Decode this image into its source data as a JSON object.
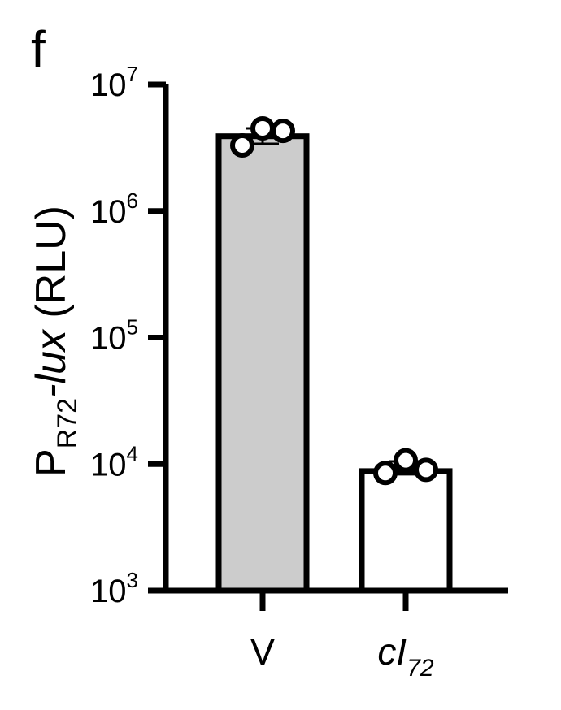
{
  "panel_label": "f",
  "chart_data": {
    "type": "bar",
    "scale": "log",
    "ylim": [
      1000,
      10000000
    ],
    "ylabel": {
      "main": "P",
      "sub": "R72",
      "gene": "-lux",
      "unit": " (RLU)"
    },
    "yticks": [
      {
        "base": "10",
        "exp": "3",
        "value": 1000
      },
      {
        "base": "10",
        "exp": "4",
        "value": 10000
      },
      {
        "base": "10",
        "exp": "5",
        "value": 100000
      },
      {
        "base": "10",
        "exp": "6",
        "value": 1000000
      },
      {
        "base": "10",
        "exp": "7",
        "value": 10000000
      }
    ],
    "categories": [
      {
        "label": "V",
        "sub": "",
        "italic": false
      },
      {
        "label": "cI",
        "sub": "72",
        "italic": true
      }
    ],
    "values": [
      3900000,
      8800
    ],
    "error_high": [
      4500000,
      10500
    ],
    "error_low": [
      3400000,
      8300
    ],
    "points": [
      [
        3300000,
        4500000,
        4300000
      ],
      [
        8500.0,
        10700,
        9000
      ]
    ],
    "bar_colors": [
      "#cccccc",
      "#ffffff"
    ],
    "grid": false
  }
}
